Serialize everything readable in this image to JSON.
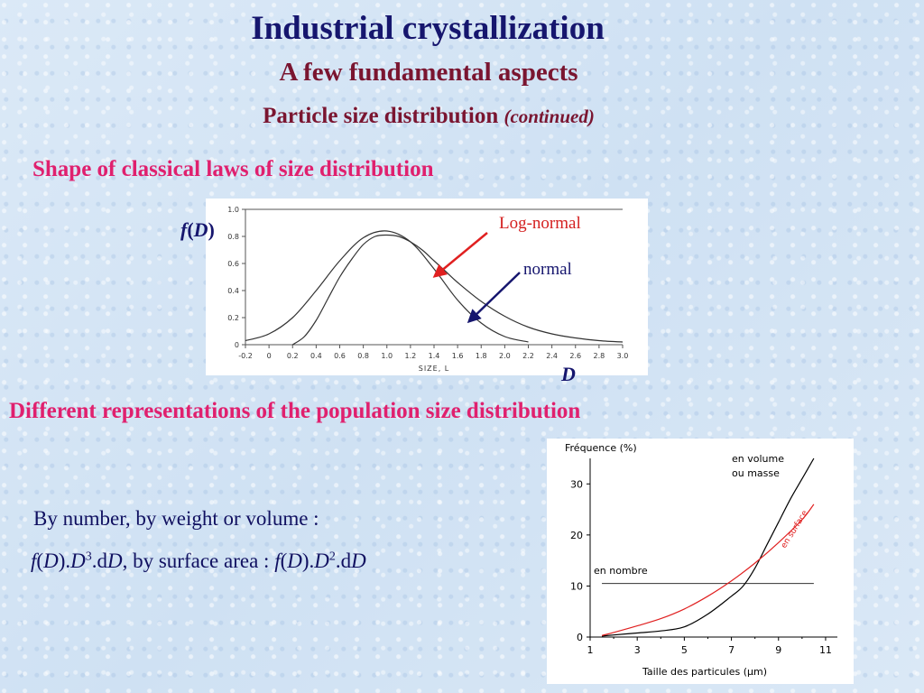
{
  "slide": {
    "title": "Industrial crystallization",
    "subtitle": "A few fundamental aspects",
    "section_main": "Particle size distribution",
    "section_note": "(continued)",
    "heading1": "Shape of classical laws of size distribution",
    "heading2": "Different representations of the population size distribution",
    "body_line1": "By number, by weight or volume :",
    "formula": {
      "f1": "f",
      "p1": "(",
      "D1": "D",
      "p2": ").",
      "D2": "D",
      "exp1": "3",
      "dot1": ".d",
      "D3": "D",
      "mid": ", by surface area : ",
      "f2": "f",
      "p3": "(",
      "D4": "D",
      "p4": ").",
      "D5": "D",
      "exp2": "2",
      "dot2": ".d",
      "D6": "D"
    }
  },
  "chart1": {
    "chart_data": {
      "type": "line",
      "xlabel": "SIZE, L",
      "x_ticks": [
        "-0.2",
        "0",
        "0.2",
        "0.4",
        "0.6",
        "0.8",
        "1.0",
        "1.2",
        "1.4",
        "1.6",
        "1.8",
        "2.0",
        "2.2",
        "2.4",
        "2.6",
        "2.8",
        "3.0"
      ],
      "y_ticks": [
        "0",
        "0.2",
        "0.4",
        "0.6",
        "0.8",
        "1.0"
      ],
      "xlim": [
        -0.2,
        3.0
      ],
      "ylim": [
        0,
        1.0
      ],
      "series": [
        {
          "name": "Log-normal",
          "x": [
            0.2,
            0.3,
            0.4,
            0.5,
            0.6,
            0.7,
            0.8,
            0.9,
            1.0,
            1.1,
            1.2,
            1.3,
            1.4,
            1.5,
            1.6,
            1.8,
            2.0,
            2.2,
            2.4,
            2.6,
            2.8,
            3.0
          ],
          "y": [
            0.0,
            0.06,
            0.18,
            0.34,
            0.5,
            0.63,
            0.74,
            0.8,
            0.81,
            0.8,
            0.76,
            0.7,
            0.62,
            0.54,
            0.46,
            0.32,
            0.21,
            0.13,
            0.08,
            0.05,
            0.03,
            0.02
          ]
        },
        {
          "name": "normal",
          "x": [
            -0.2,
            0.0,
            0.2,
            0.4,
            0.6,
            0.8,
            1.0,
            1.2,
            1.4,
            1.6,
            1.8,
            2.0,
            2.2
          ],
          "y": [
            0.03,
            0.08,
            0.2,
            0.4,
            0.62,
            0.79,
            0.84,
            0.76,
            0.56,
            0.33,
            0.16,
            0.06,
            0.02
          ]
        }
      ],
      "annotations": [
        "Log-normal",
        "normal"
      ],
      "y_axis_label": {
        "f": "f",
        "open": "(",
        "D": "D",
        "close": ")"
      },
      "x_axis_label": "D"
    }
  },
  "chart2": {
    "chart_data": {
      "type": "line",
      "ylabel": "Fréquence (%)",
      "xlabel": "Taille des particules (µm)",
      "x_ticks": [
        "1",
        "3",
        "5",
        "7",
        "9",
        "11"
      ],
      "y_ticks": [
        "0",
        "10",
        "20",
        "30"
      ],
      "xlim": [
        1,
        11.5
      ],
      "ylim": [
        0,
        35
      ],
      "series": [
        {
          "name": "en nombre",
          "x": [
            1.5,
            10.5
          ],
          "y": [
            10.5,
            10.5
          ]
        },
        {
          "name": "en volume ou masse",
          "x": [
            1.5,
            2,
            3,
            4,
            5,
            6,
            7,
            7.5,
            8,
            8.5,
            9,
            9.5,
            10,
            10.5
          ],
          "y": [
            0.2,
            0.4,
            0.8,
            1.2,
            2,
            4.5,
            8,
            10,
            13.5,
            18,
            22.5,
            27,
            31,
            35
          ]
        },
        {
          "name": "en surface",
          "x": [
            1.5,
            2,
            3,
            4,
            5,
            6,
            7,
            8,
            9,
            10,
            10.5
          ],
          "y": [
            0.3,
            0.9,
            2.2,
            3.6,
            5.5,
            8,
            11,
            14.5,
            18.5,
            23,
            26
          ]
        }
      ],
      "legend_labels": {
        "volume1": "en volume",
        "volume2": "ou masse",
        "number": "en nombre",
        "surface": "en surface"
      },
      "colors": {
        "volume": "#000000",
        "number": "#333333",
        "surface": "#e02020"
      }
    }
  }
}
